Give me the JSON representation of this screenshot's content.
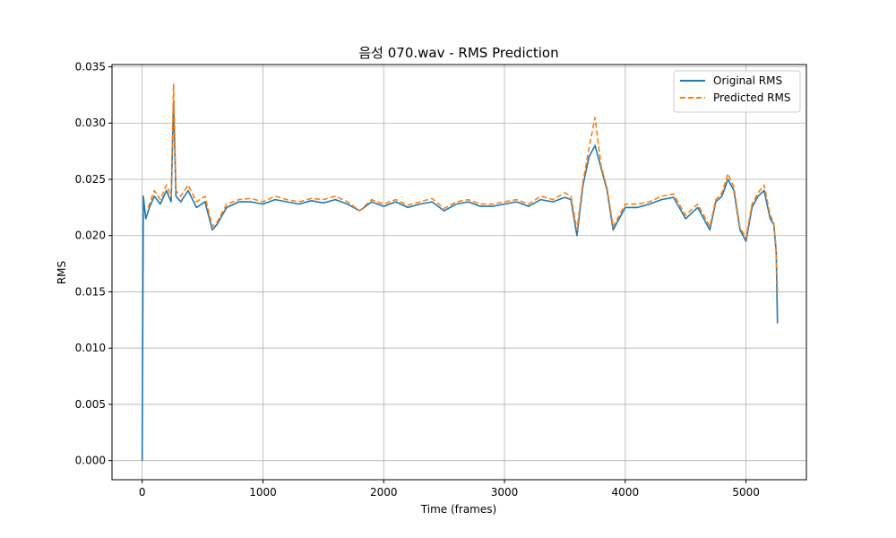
{
  "chart_data": {
    "type": "line",
    "title": "음성 070.wav - RMS Prediction",
    "xlabel": "Time (frames)",
    "ylabel": "RMS",
    "xlim": [
      -250,
      5500
    ],
    "ylim": [
      -0.0017,
      0.0352
    ],
    "xticks": [
      0,
      1000,
      2000,
      3000,
      4000,
      5000
    ],
    "yticks": [
      0.0,
      0.005,
      0.01,
      0.015,
      0.02,
      0.025,
      0.03,
      0.035
    ],
    "xtick_labels": [
      "0",
      "1000",
      "2000",
      "3000",
      "4000",
      "5000"
    ],
    "ytick_labels": [
      "0.000",
      "0.005",
      "0.010",
      "0.015",
      "0.020",
      "0.025",
      "0.030",
      "0.035"
    ],
    "grid": true,
    "legend_position": "top-right",
    "series": [
      {
        "name": "Original RMS",
        "color": "#1f77b4",
        "style": "solid",
        "x": [
          0,
          10,
          30,
          60,
          100,
          150,
          200,
          240,
          260,
          280,
          320,
          380,
          450,
          520,
          580,
          620,
          700,
          800,
          900,
          1000,
          1100,
          1200,
          1300,
          1400,
          1500,
          1600,
          1700,
          1800,
          1900,
          2000,
          2100,
          2200,
          2300,
          2400,
          2500,
          2600,
          2700,
          2800,
          2900,
          3000,
          3100,
          3200,
          3300,
          3400,
          3500,
          3550,
          3600,
          3650,
          3700,
          3750,
          3800,
          3850,
          3900,
          4000,
          4100,
          4200,
          4300,
          4400,
          4500,
          4600,
          4700,
          4750,
          4800,
          4850,
          4900,
          4950,
          5000,
          5050,
          5100,
          5150,
          5200,
          5230,
          5250,
          5260
        ],
        "y": [
          0.0,
          0.0235,
          0.0215,
          0.0225,
          0.0235,
          0.0228,
          0.024,
          0.023,
          0.032,
          0.0235,
          0.023,
          0.024,
          0.0225,
          0.023,
          0.0205,
          0.021,
          0.0225,
          0.023,
          0.023,
          0.0228,
          0.0232,
          0.023,
          0.0228,
          0.0231,
          0.0229,
          0.0232,
          0.0228,
          0.0222,
          0.023,
          0.0226,
          0.023,
          0.0225,
          0.0228,
          0.023,
          0.0222,
          0.0228,
          0.023,
          0.0226,
          0.0226,
          0.0228,
          0.023,
          0.0226,
          0.0232,
          0.023,
          0.0234,
          0.0232,
          0.02,
          0.0245,
          0.027,
          0.028,
          0.026,
          0.024,
          0.0205,
          0.0225,
          0.0225,
          0.0228,
          0.0232,
          0.0234,
          0.0215,
          0.0225,
          0.0205,
          0.023,
          0.0235,
          0.025,
          0.024,
          0.0205,
          0.0195,
          0.0225,
          0.0235,
          0.024,
          0.0215,
          0.021,
          0.0185,
          0.0122
        ]
      },
      {
        "name": "Predicted RMS",
        "color": "#ff7f0e",
        "style": "dashed",
        "x": [
          50,
          100,
          150,
          200,
          240,
          260,
          280,
          320,
          380,
          450,
          520,
          580,
          620,
          700,
          800,
          900,
          1000,
          1100,
          1200,
          1300,
          1400,
          1500,
          1600,
          1700,
          1800,
          1900,
          2000,
          2100,
          2200,
          2300,
          2400,
          2500,
          2600,
          2700,
          2800,
          2900,
          3000,
          3100,
          3200,
          3300,
          3400,
          3500,
          3550,
          3600,
          3650,
          3700,
          3750,
          3800,
          3850,
          3900,
          4000,
          4100,
          4200,
          4300,
          4400,
          4500,
          4600,
          4700,
          4750,
          4800,
          4850,
          4900,
          4950,
          5000,
          5050,
          5100,
          5150,
          5200,
          5230,
          5250,
          5260
        ],
        "y": [
          0.0225,
          0.024,
          0.0232,
          0.0245,
          0.0235,
          0.0335,
          0.024,
          0.0235,
          0.0245,
          0.023,
          0.0235,
          0.0208,
          0.0212,
          0.0228,
          0.0232,
          0.0233,
          0.023,
          0.0235,
          0.0232,
          0.023,
          0.0233,
          0.0232,
          0.0235,
          0.023,
          0.0222,
          0.0232,
          0.0228,
          0.0232,
          0.0227,
          0.023,
          0.0233,
          0.0224,
          0.023,
          0.0232,
          0.0228,
          0.0228,
          0.023,
          0.0232,
          0.0228,
          0.0235,
          0.0232,
          0.0238,
          0.0235,
          0.0205,
          0.0248,
          0.0278,
          0.0305,
          0.0262,
          0.0242,
          0.0208,
          0.0228,
          0.0228,
          0.023,
          0.0235,
          0.0237,
          0.0218,
          0.0228,
          0.0208,
          0.0232,
          0.0238,
          0.0255,
          0.0243,
          0.0207,
          0.0198,
          0.0228,
          0.0238,
          0.0245,
          0.0218,
          0.0212,
          0.0188,
          0.015
        ]
      }
    ]
  }
}
